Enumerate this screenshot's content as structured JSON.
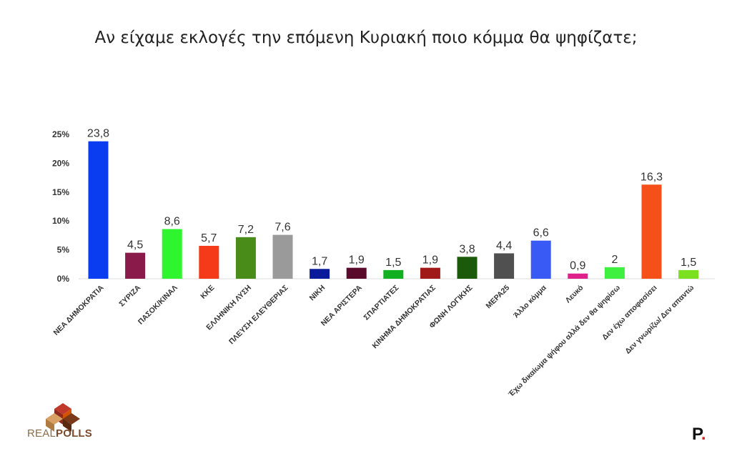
{
  "title": "Αν είχαμε εκλογές την επόμενη Κυριακή ποιο κόμμα θα ψηφίζατε;",
  "chart_data": {
    "type": "bar",
    "title": "Αν είχαμε εκλογές την επόμενη Κυριακή ποιο κόμμα θα ψηφίζατε;",
    "categories": [
      "ΝΕΑ ΔΗΜΟΚΡΑΤΙΑ",
      "ΣΥΡΙΖΑ",
      "ΠΑΣΟΚ/ΚΙΝΑΛ",
      "ΚΚΕ",
      "ΕΛΛΗΝΙΚΗ ΛΥΣΗ",
      "ΠΛΕΥΣΗ ΕΛΕΥΘΕΡΙΑΣ",
      "ΝΙΚΗ",
      "ΝΕΑ ΑΡΙΣΤΕΡΑ",
      "ΣΠΑΡΤΙΑΤΕΣ",
      "ΚΙΝΗΜΑ ΔΗΜΟΚΡΑΤΙΑΣ",
      "ΦΩΝΗ ΛΟΓΙΚΗΣ",
      "ΜΕΡΑ25",
      "Άλλο κόμμα",
      "Λευκό",
      "Έχω δικαίωμα ψήφου αλλά δεν θα ψηφίσω",
      "Δεν έχω αποφασίσει",
      "Δεν γνωρίζω/ Δεν απαντώ"
    ],
    "values": [
      23.8,
      4.5,
      8.6,
      5.7,
      7.2,
      7.6,
      1.7,
      1.9,
      1.5,
      1.9,
      3.8,
      4.4,
      6.6,
      0.9,
      2,
      16.3,
      1.5
    ],
    "value_labels": [
      "23,8",
      "4,5",
      "8,6",
      "5,7",
      "7,2",
      "7,6",
      "1,7",
      "1,9",
      "1,5",
      "1,9",
      "3,8",
      "4,4",
      "6,6",
      "0,9",
      "2",
      "16,3",
      "1,5"
    ],
    "colors": [
      "#0a3cf0",
      "#8a1a4a",
      "#2ef52e",
      "#f53a1a",
      "#4a8c1a",
      "#9a9a9a",
      "#0a1a9a",
      "#5a0a2a",
      "#10b020",
      "#a01a1a",
      "#1a5a0a",
      "#505050",
      "#3a5af5",
      "#e0208a",
      "#40f040",
      "#f5501a",
      "#7ae020"
    ],
    "y_ticks": [
      "0%",
      "5%",
      "10%",
      "15%",
      "20%",
      "25%"
    ],
    "ylim": [
      0,
      25
    ],
    "xlabel": "",
    "ylabel": "",
    "grid": false,
    "legend": "none"
  },
  "logos": {
    "left_text_regular": "REAL",
    "left_text_bold": "POLLS",
    "right_letter": "P",
    "right_dot": "."
  }
}
